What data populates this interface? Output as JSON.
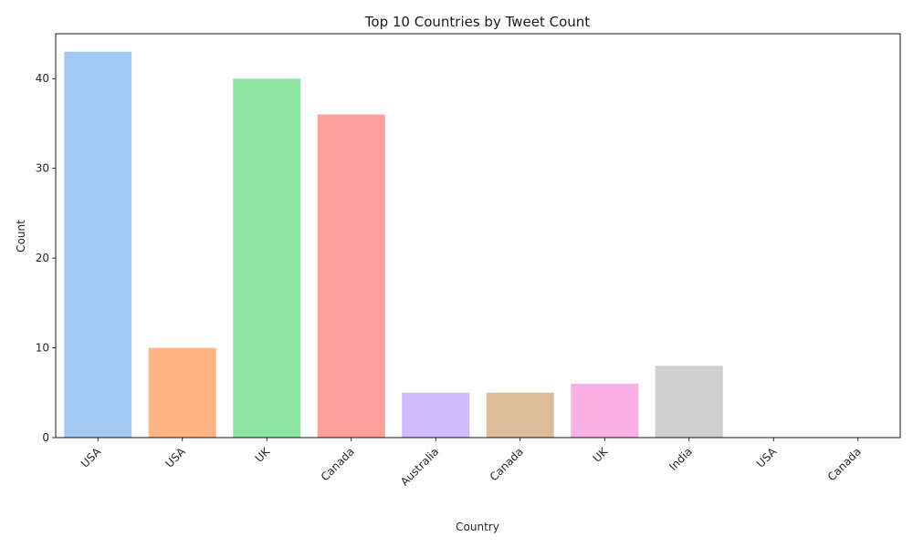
{
  "chart_data": {
    "type": "bar",
    "title": "Top 10 Countries by Tweet Count",
    "xlabel": "Country",
    "ylabel": "Count",
    "categories": [
      "USA",
      "USA",
      "UK",
      "Canada",
      "Australia",
      "Canada",
      "UK",
      "India",
      "USA",
      "Canada"
    ],
    "values": [
      43,
      10,
      40,
      36,
      5,
      5,
      6,
      8,
      0,
      0
    ],
    "ylim": [
      0,
      45
    ],
    "yticks": [
      0,
      10,
      20,
      30,
      40
    ],
    "grid": false,
    "legend": "none",
    "colors": [
      "#a1c9f4",
      "#ffb482",
      "#8de5a1",
      "#ff9f9b",
      "#d0bbff",
      "#debb9b",
      "#fab0e4",
      "#cfcfcf",
      "#fffea3",
      "#b9f2f0"
    ]
  }
}
